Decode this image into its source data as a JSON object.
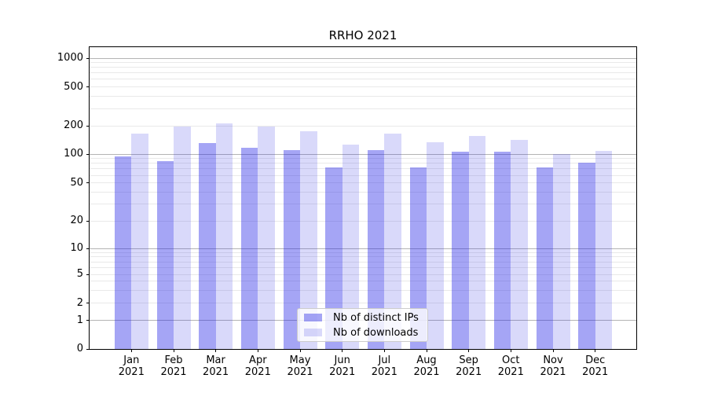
{
  "chart_data": {
    "type": "bar",
    "title": "RRHO 2021",
    "categories": [
      "Jan",
      "Feb",
      "Mar",
      "Apr",
      "May",
      "Jun",
      "Jul",
      "Aug",
      "Sep",
      "Oct",
      "Nov",
      "Dec"
    ],
    "category_year": "2021",
    "series": [
      {
        "name": "Nb of distinct IPs",
        "color": "rgba(30,30,230,0.40)",
        "color_on_white": "#a5a5f5",
        "values": [
          95,
          84,
          131,
          117,
          110,
          73,
          110,
          73,
          107,
          106,
          72,
          82
        ]
      },
      {
        "name": "Nb of downloads",
        "color": "rgba(44,44,227,0.18)",
        "color_on_white": "#d9d9fa",
        "values": [
          165,
          195,
          210,
          195,
          175,
          127,
          164,
          134,
          155,
          142,
          101,
          109
        ]
      }
    ],
    "y_ticks": [
      0,
      1,
      2,
      5,
      10,
      20,
      50,
      100,
      200,
      500,
      1000
    ],
    "y_scale": "log-like (1-2-5 ticks, linear below 1)",
    "ylim": [
      0,
      1360
    ],
    "xlabel": "",
    "ylabel": "",
    "grid": {
      "major_color": "#b4b4b4",
      "minor_color": "#e9e9e9",
      "minor_at": "2-9 per decade"
    },
    "legend": {
      "position": "lower center-left inset",
      "entries": [
        "Nb of distinct IPs",
        "Nb of downloads"
      ]
    }
  }
}
